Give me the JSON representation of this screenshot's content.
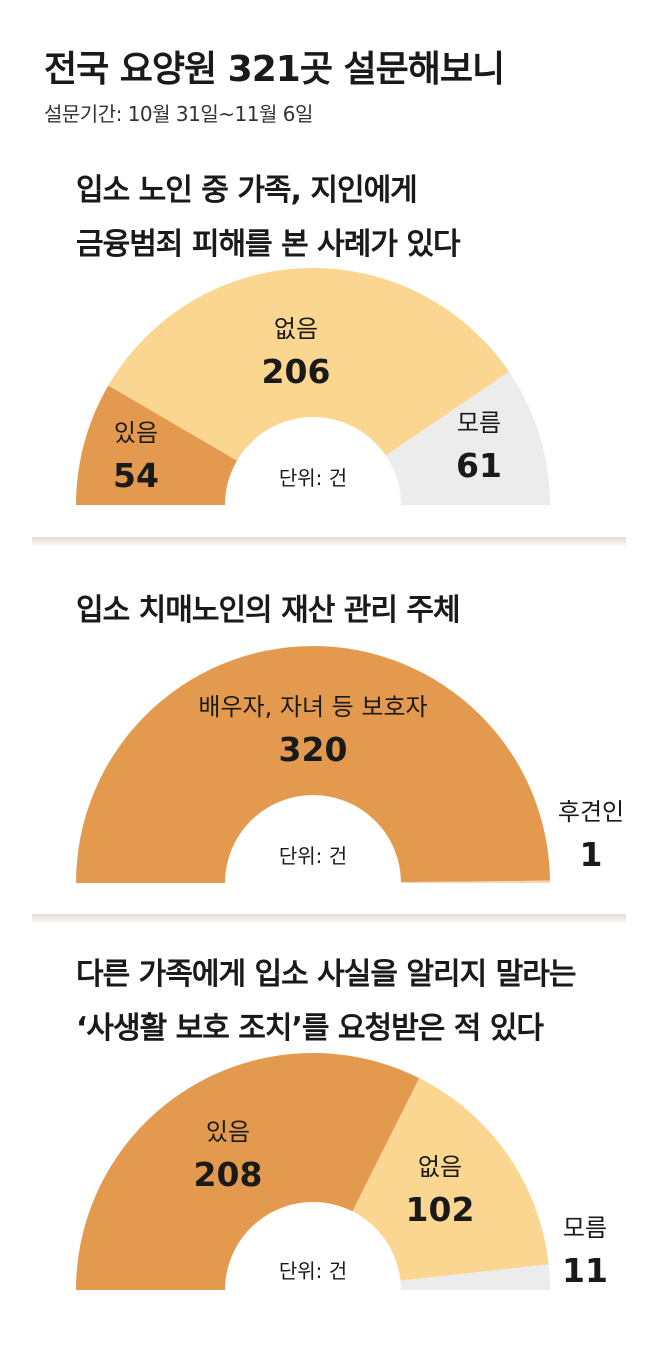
{
  "header": {
    "title": "전국 요양원 321곳 설문해보니",
    "period": "설문기간: 10월 31일~11월 6일"
  },
  "colors": {
    "dark_orange": "#e49a4e",
    "light_orange": "#fad690",
    "gray": "#ececec"
  },
  "chart_data": [
    {
      "type": "pie",
      "shape": "half-donut",
      "title_lines": [
        "입소 노인 중 가족, 지인에게",
        "금융범죄 피해를 본 사례가 있다"
      ],
      "unit": "단위: 건",
      "categories": [
        "있음",
        "없음",
        "모름"
      ],
      "values": [
        54,
        206,
        61
      ],
      "display_values": [
        "54",
        "206",
        "61"
      ],
      "colors": [
        "#e49a4e",
        "#fad690",
        "#ececec"
      ]
    },
    {
      "type": "pie",
      "shape": "half-donut",
      "title_lines": [
        "입소 치매노인의 재산 관리 주체"
      ],
      "unit": "단위: 건",
      "categories": [
        "배우자, 자녀 등 보호자",
        "후견인"
      ],
      "values": [
        320,
        1
      ],
      "display_values": [
        "320",
        "1"
      ],
      "colors": [
        "#e49a4e",
        "#f3d9b8"
      ]
    },
    {
      "type": "pie",
      "shape": "half-donut",
      "title_lines": [
        "다른 가족에게 입소 사실을 알리지 말라는",
        "‘사생활 보호 조치’를 요청받은 적 있다"
      ],
      "unit": "단위: 건",
      "categories": [
        "있음",
        "없음",
        "모름"
      ],
      "values": [
        208,
        102,
        11
      ],
      "display_values": [
        "208",
        "102",
        "11"
      ],
      "colors": [
        "#e49a4e",
        "#fad690",
        "#ececec"
      ]
    }
  ]
}
